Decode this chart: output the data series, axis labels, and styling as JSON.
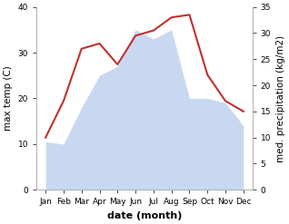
{
  "months": [
    "Jan",
    "Feb",
    "Mar",
    "Apr",
    "May",
    "Jun",
    "Jul",
    "Aug",
    "Sep",
    "Oct",
    "Nov",
    "Dec"
  ],
  "month_positions": [
    1,
    2,
    3,
    4,
    5,
    6,
    7,
    8,
    9,
    10,
    11,
    12
  ],
  "temperature": [
    10.5,
    10.0,
    18.0,
    25.0,
    27.0,
    35.0,
    33.0,
    35.0,
    20.0,
    20.0,
    19.0,
    14.0
  ],
  "precipitation": [
    10.0,
    17.0,
    27.0,
    28.0,
    24.0,
    29.5,
    30.5,
    33.0,
    33.5,
    22.0,
    17.0,
    15.0
  ],
  "temp_fill_color": "#c8d8f0",
  "precip_color": "#c03030",
  "temp_ylim": [
    0,
    40
  ],
  "precip_ylim": [
    0,
    35
  ],
  "temp_yticks": [
    0,
    10,
    20,
    30,
    40
  ],
  "precip_yticks": [
    0,
    5,
    10,
    15,
    20,
    25,
    30,
    35
  ],
  "ylabel_left": "max temp (C)",
  "ylabel_right": "med. precipitation (kg/m2)",
  "xlabel": "date (month)",
  "background_color": "#ffffff",
  "fill_alpha": 1.0,
  "spine_color": "#aaaaaa",
  "tick_label_fontsize": 6.5,
  "axis_label_fontsize": 7.5,
  "xlabel_fontsize": 8
}
